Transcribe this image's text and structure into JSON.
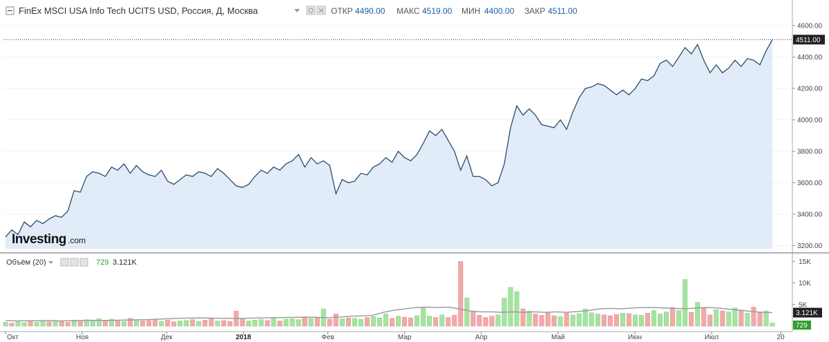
{
  "header": {
    "title": "FinEx MSCI USA Info Tech UCITS USD, Россия, Д, Москва",
    "open_label": "ОТКР",
    "open_value": "4490.00",
    "high_label": "МАКС",
    "high_value": "4519.00",
    "low_label": "МИН",
    "low_value": "4400.00",
    "close_label": "ЗАКР",
    "close_value": "4511.00"
  },
  "volume_header": {
    "title": "Объём (20)",
    "volume_value": "729",
    "ma_value": "3.121K"
  },
  "logo": {
    "brand": "Investing",
    "suffix": ".com"
  },
  "colors": {
    "price_line": "#2a4b6b",
    "price_fill": "#dce9f7",
    "vol_up": "#a6e3a1",
    "vol_down": "#f1a9a9",
    "vol_ma": "#9e9e9e",
    "value_blue": "#1a5fa3",
    "value_green": "#2f9e2f"
  },
  "chart_data": [
    {
      "type": "area",
      "title": "FinEx MSCI USA Info Tech UCITS USD",
      "x_axis_labels": [
        "Окт",
        "Ноя",
        "Дек",
        "2018",
        "Фев",
        "Мар",
        "Апр",
        "Май",
        "Июн",
        "Июл",
        "20"
      ],
      "y_ticks": [
        "4600.00",
        "4400.00",
        "4200.00",
        "4000.00",
        "3800.00",
        "3600.00",
        "3400.00",
        "3200.00"
      ],
      "ylim": [
        3180,
        4640
      ],
      "last_price_label": "4511.00",
      "series": [
        {
          "values": [
            3255,
            3300,
            3270,
            3350,
            3320,
            3360,
            3340,
            3370,
            3390,
            3380,
            3420,
            3550,
            3540,
            3640,
            3670,
            3660,
            3640,
            3700,
            3680,
            3720,
            3660,
            3710,
            3670,
            3650,
            3640,
            3680,
            3610,
            3590,
            3620,
            3650,
            3640,
            3670,
            3660,
            3640,
            3690,
            3660,
            3620,
            3580,
            3570,
            3590,
            3640,
            3680,
            3660,
            3700,
            3680,
            3720,
            3740,
            3780,
            3700,
            3760,
            3720,
            3740,
            3710,
            3530,
            3620,
            3600,
            3610,
            3660,
            3650,
            3700,
            3720,
            3760,
            3730,
            3800,
            3760,
            3740,
            3780,
            3850,
            3930,
            3900,
            3940,
            3870,
            3800,
            3680,
            3770,
            3640,
            3640,
            3620,
            3580,
            3600,
            3720,
            3950,
            4090,
            4030,
            4070,
            4030,
            3970,
            3960,
            3950,
            4000,
            3940,
            4050,
            4140,
            4200,
            4210,
            4230,
            4220,
            4190,
            4160,
            4190,
            4160,
            4200,
            4260,
            4250,
            4280,
            4360,
            4380,
            4340,
            4400,
            4460,
            4420,
            4480,
            4380,
            4300,
            4350,
            4300,
            4330,
            4380,
            4340,
            4390,
            4380,
            4350,
            4440,
            4511
          ]
        }
      ]
    },
    {
      "type": "bar",
      "title": "Объём (20)",
      "y_ticks": [
        "15K",
        "10K",
        "5K"
      ],
      "ylim": [
        0,
        16000
      ],
      "last_volume_label": "729",
      "last_ma_label": "3.121K",
      "series": [
        {
          "values": [
            900,
            700,
            1000,
            800,
            1200,
            900,
            1100,
            1000,
            1300,
            1200,
            900,
            1400,
            1100,
            1500,
            1300,
            1700,
            1200,
            1600,
            1400,
            1100,
            1800,
            1500,
            1200,
            1300,
            1600,
            1100,
            1400,
            1000,
            1200,
            1300,
            1500,
            1100,
            1400,
            1700,
            1200,
            1300,
            1100,
            3500,
            1600,
            1200,
            1400,
            1500,
            1300,
            1800,
            1200,
            1600,
            1700,
            1500,
            2000,
            1800,
            1900,
            4000,
            1600,
            2800,
            1700,
            1900,
            1800,
            1600,
            2000,
            2200,
            1900,
            2800,
            1800,
            2300,
            2100,
            1900,
            2400,
            4200,
            2300,
            2000,
            2600,
            2000,
            2500,
            15000,
            6500,
            3500,
            2500,
            2000,
            2300,
            2600,
            6500,
            9000,
            8000,
            4000,
            3500,
            2800,
            2500,
            3200,
            2400,
            2200,
            3000,
            2600,
            2900,
            4000,
            3100,
            2800,
            2600,
            2400,
            2700,
            3000,
            2900,
            2600,
            2500,
            3000,
            3600,
            2800,
            3300,
            4300,
            3600,
            10800,
            3200,
            5500,
            4200,
            2600,
            3800,
            3500,
            3300,
            4200,
            3600,
            3000,
            4400,
            3300,
            3500,
            729
          ],
          "up": [
            true,
            false,
            true,
            true,
            false,
            true,
            true,
            false,
            true,
            false,
            false,
            true,
            false,
            true,
            true,
            true,
            false,
            true,
            false,
            true,
            false,
            true,
            false,
            false,
            false,
            true,
            false,
            false,
            true,
            true,
            false,
            true,
            false,
            false,
            true,
            false,
            false,
            false,
            false,
            true,
            true,
            true,
            false,
            true,
            false,
            true,
            true,
            true,
            false,
            true,
            false,
            true,
            false,
            false,
            true,
            false,
            true,
            true,
            false,
            true,
            true,
            true,
            false,
            true,
            false,
            false,
            true,
            true,
            true,
            false,
            true,
            false,
            false,
            false,
            true,
            false,
            false,
            false,
            false,
            true,
            true,
            true,
            true,
            false,
            true,
            false,
            false,
            false,
            false,
            true,
            false,
            true,
            true,
            true,
            true,
            true,
            false,
            false,
            false,
            true,
            false,
            true,
            true,
            false,
            true,
            true,
            true,
            false,
            true,
            true,
            false,
            true,
            false,
            false,
            true,
            false,
            true,
            true,
            false,
            true,
            false,
            false,
            true,
            true
          ]
        },
        {
          "name": "MA",
          "values": [
            1300,
            1200,
            1250,
            1250,
            1300,
            1200,
            1250,
            1300,
            1350,
            1300,
            1350,
            1400,
            1450,
            1500,
            1600,
            1700,
            1800,
            1850,
            1900,
            1850,
            1800,
            1800,
            1800,
            1850,
            1900,
            1950,
            2000,
            2050,
            2100,
            2000,
            1950,
            2100,
            2300,
            2350,
            2500,
            3200,
            3700,
            4000,
            4300,
            4400,
            4300,
            4400,
            4000,
            3500,
            3300,
            3300,
            3200,
            3300,
            3200,
            3300,
            3200,
            3300,
            3200,
            3400,
            3600,
            4000,
            4100,
            4000,
            4200,
            4300,
            4300,
            4200,
            4100,
            4000,
            4200,
            4300,
            4200,
            3900,
            3700,
            3400,
            3200,
            3121
          ]
        }
      ]
    }
  ]
}
